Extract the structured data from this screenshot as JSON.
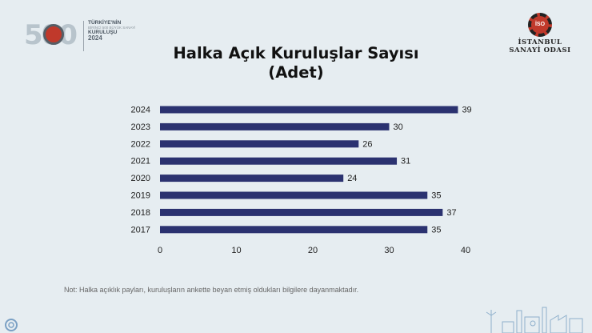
{
  "header": {
    "logo_left": {
      "number": "500",
      "line1": "TÜRKİYE'NİN",
      "line2": "BİRİNCİ 500 BÜYÜK SANAYİ",
      "line3": "KURULUŞU",
      "line4": "2024"
    },
    "logo_right": {
      "badge": "İSO",
      "line1": "İSTANBUL",
      "line2": "SANAYİ ODASI"
    }
  },
  "title_line1": "Halka Açık Kuruluşlar Sayısı",
  "title_line2": "(Adet)",
  "chart_data": {
    "type": "bar",
    "orientation": "horizontal",
    "categories": [
      "2024",
      "2023",
      "2022",
      "2021",
      "2020",
      "2019",
      "2018",
      "2017"
    ],
    "values": [
      39,
      30,
      26,
      31,
      24,
      35,
      37,
      35
    ],
    "xlim": [
      0,
      40
    ],
    "xticks": [
      0,
      10,
      20,
      30,
      40
    ],
    "bar_color": "#2b3270",
    "data_labels": true,
    "grid": false,
    "legend": "none"
  },
  "note": "Not: Halka açıklık payları, kuruluşların ankette beyan etmiş oldukları bilgilere dayanmaktadır.",
  "colors": {
    "background": "#e6edf1",
    "bar": "#2b3270",
    "accent": "#c0392b"
  }
}
